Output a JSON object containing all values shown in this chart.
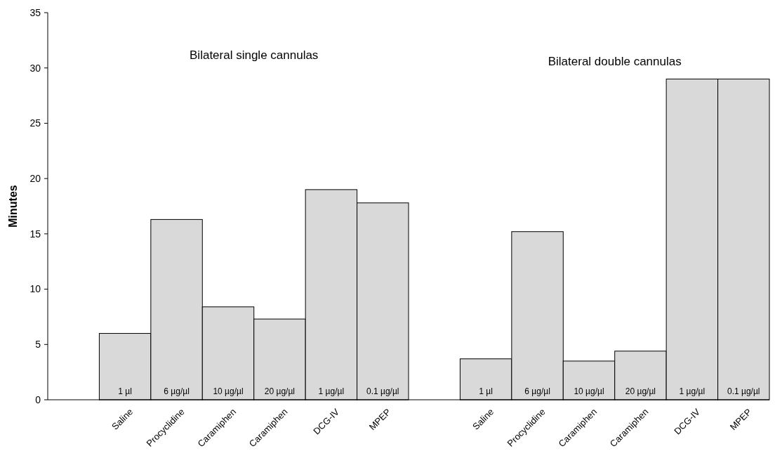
{
  "chart_data": {
    "type": "bar",
    "ylabel": "Minutes",
    "categories": [
      null,
      "Saline",
      "Procyclidine",
      "Caramiphen",
      "Caramiphen",
      "DCG-IV",
      "MPEP",
      null,
      "Saline",
      "Procyclidine",
      "Caramiphen",
      "Caramiphen",
      "DCG-IV",
      "MPEP"
    ],
    "values": [
      null,
      6.0,
      16.3,
      8.4,
      7.3,
      19.0,
      17.8,
      null,
      3.7,
      15.2,
      3.5,
      4.4,
      29.0,
      29.0
    ],
    "color": "#d9d9d9",
    "ylim": [
      0,
      35
    ],
    "yticks": [
      0,
      5,
      10,
      15,
      20,
      25,
      30,
      35
    ],
    "grid": false,
    "annotations": [
      "Bilateral single cannulas",
      "Bilateral double cannulas",
      "1 µl",
      "6 µg/µl",
      "10 µg/µl",
      "20 µg/µl",
      "1 µg/µl",
      "0.1 µg/µl",
      "1 µl",
      "6 µg/µl",
      "10 µg/µl",
      "20 µg/µl",
      "1 µg/µl",
      "0.1 µg/µl"
    ]
  }
}
